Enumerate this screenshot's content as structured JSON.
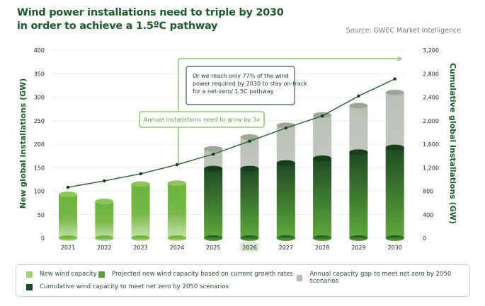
{
  "header": {
    "title_line1": "Wind power installations need to triple by 2030",
    "title_line2": "in order to achieve a 1.5ºC pathway",
    "source": "Source: GWEC Market Intelligence"
  },
  "annotations": {
    "box1": [
      "Or we reach only 77% of the wind",
      "power required by 2030 to stay on-track",
      "for a net-zero/ 1.5C pathway"
    ],
    "box2": "Annual installations need to grow by 3x"
  },
  "colors": {
    "light_green": "#8cc152",
    "mid_green": "#6db33f",
    "dark_green": "#1e4d24",
    "gap_gray": "#b8bfb3",
    "line": "#2d5a34",
    "annotation_green": "#7cc05a",
    "title": "#1f5a2a"
  },
  "legend": {
    "items": [
      {
        "label": "New wind capacity",
        "color": "#9ccf78"
      },
      {
        "label": "Projected new wind capacity based on current growth rates",
        "color": "#5a9e3a"
      },
      {
        "label": "Annual capacity gap to meet net zero by 2050 scenarios",
        "color": "#b5bcb1"
      },
      {
        "label": "Cumulative wind capacity to meet net zero by 2050 scenarios",
        "color": "#1e4d24"
      }
    ]
  },
  "chart_data": {
    "type": "bar",
    "title": "Wind power installations need to triple by 2030 in order to achieve a 1.5ºC pathway",
    "categories": [
      "2021",
      "2022",
      "2023",
      "2024",
      "2025",
      "2026",
      "2027",
      "2028",
      "2029",
      "2030"
    ],
    "highlighted_category": "2026",
    "ylabel": "New global installations (GW)",
    "y2label": "Cumulative global installations (GW)",
    "ylim": [
      0,
      400
    ],
    "y2lim": [
      0,
      3200
    ],
    "yticks": [
      "0",
      "50",
      "100",
      "150",
      "200",
      "250",
      "300",
      "350",
      "400"
    ],
    "y2ticks": [
      "0",
      "400",
      "800",
      "1,200",
      "1,600",
      "2,000",
      "2,400",
      "2,800",
      "3,200"
    ],
    "grid": true,
    "legend_position": "bottom",
    "series": [
      {
        "name": "New wind capacity",
        "type": "bar",
        "values": [
          93,
          78,
          115,
          117,
          null,
          null,
          null,
          null,
          null,
          null
        ]
      },
      {
        "name": "Projected new wind capacity based on current growth rates",
        "type": "bar",
        "values": [
          null,
          null,
          null,
          null,
          148,
          148,
          160,
          170,
          183,
          193
        ]
      },
      {
        "name": "Annual capacity gap to meet net zero by 2050 scenarios",
        "type": "bar-stacked",
        "values": [
          null,
          null,
          null,
          null,
          42,
          67,
          80,
          92,
          99,
          117
        ]
      },
      {
        "name": "Cumulative wind capacity to meet net zero by 2050 scenarios",
        "type": "line",
        "axis": "right",
        "values": [
          866,
          975,
          1095,
          1250,
          1430,
          1650,
          1875,
          2080,
          2420,
          2710
        ]
      }
    ]
  }
}
